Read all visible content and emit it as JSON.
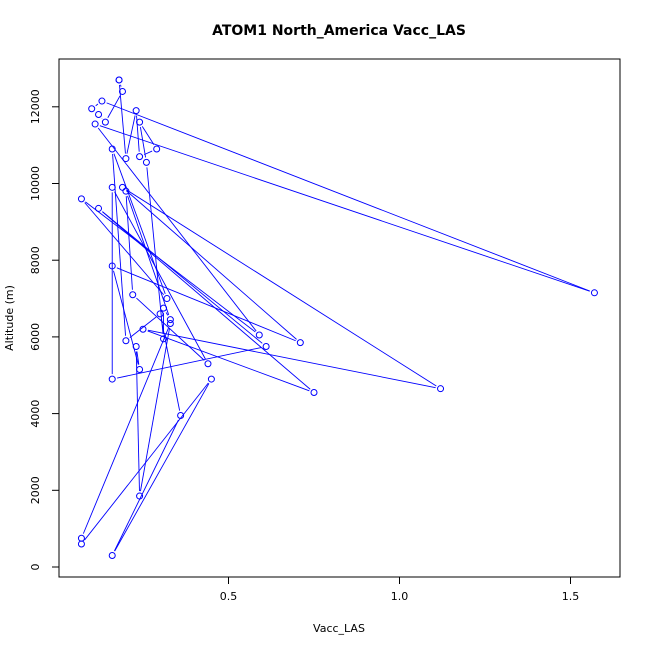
{
  "chart_data": {
    "type": "line",
    "title": "ATOM1 North_America Vacc_LAS",
    "xlabel": "Vacc_LAS",
    "ylabel": "Altitude (m)",
    "xlim": [
      0.05,
      1.6
    ],
    "ylim": [
      -100,
      13000
    ],
    "x_ticks": [
      0.5,
      1.0,
      1.5
    ],
    "x_tick_labels": [
      "0.5",
      "1.0",
      "1.5"
    ],
    "y_ticks": [
      0,
      2000,
      4000,
      6000,
      8000,
      10000,
      12000
    ],
    "y_tick_labels": [
      "0",
      "2000",
      "4000",
      "6000",
      "8000",
      "10000",
      "12000"
    ],
    "grid": false,
    "series": [
      {
        "color": "#0000ff",
        "x": [
          0.07,
          0.45,
          0.16,
          0.36,
          0.3,
          0.2,
          0.16,
          0.32,
          0.07,
          0.59,
          0.11,
          1.57,
          0.13,
          0.1,
          0.12,
          0.14,
          0.19,
          0.18,
          0.18,
          0.2,
          0.23,
          0.24,
          0.29,
          0.24,
          0.26,
          0.31,
          0.31,
          0.33,
          0.2,
          0.22,
          0.44,
          0.16,
          0.16,
          0.61,
          0.12,
          0.75,
          0.25,
          1.12,
          0.19,
          0.71,
          0.16,
          0.24,
          0.23,
          0.24,
          0.33,
          0.07
        ],
        "y": [
          0.6,
          4.9,
          0.3,
          3.95,
          6.6,
          5.9,
          10.9,
          7.0,
          9.6,
          6.05,
          11.55,
          7.15,
          12.15,
          11.95,
          11.8,
          11.6,
          12.4,
          12.7,
          12.7,
          10.65,
          11.9,
          10.7,
          10.9,
          11.6,
          10.55,
          5.95,
          6.75,
          6.45,
          9.8,
          7.1,
          5.3,
          9.9,
          4.9,
          5.75,
          9.35,
          4.55,
          6.2,
          4.65,
          9.9,
          5.85,
          7.85,
          5.15,
          5.75,
          1.85,
          6.35,
          0.75
        ],
        "y_units_note": ""
      }
    ]
  }
}
